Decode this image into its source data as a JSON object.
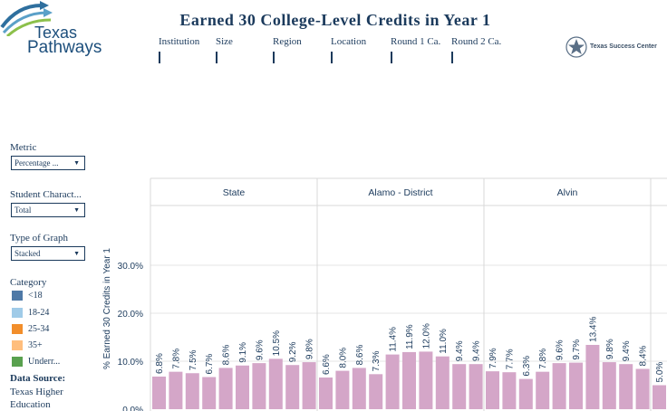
{
  "header": {
    "title": "Earned 30 College-Level Credits in Year 1",
    "logo_line1": "Texas",
    "logo_line2": "Pathways",
    "partner": "Texas Success Center"
  },
  "filters": [
    {
      "label": "Institution"
    },
    {
      "label": "Size"
    },
    {
      "label": "Region"
    },
    {
      "label": "Location"
    },
    {
      "label": "Round 1 Ca."
    },
    {
      "label": "Round 2 Ca."
    }
  ],
  "sidebar": {
    "metric_label": "Metric",
    "metric_value": "Percentage ...",
    "student_label": "Student Charact...",
    "student_value": "Total",
    "graph_label": "Type of Graph",
    "graph_value": "Stacked",
    "category_label": "Category",
    "categories": [
      {
        "label": "<18",
        "color": "#4e79a7"
      },
      {
        "label": "18-24",
        "color": "#a0cbe8"
      },
      {
        "label": "25-34",
        "color": "#f28e2b"
      },
      {
        "label": "35+",
        "color": "#ffbe7d"
      },
      {
        "label": "Underr...",
        "color": "#59a14f"
      }
    ],
    "data_source_title": "Data Source:",
    "data_source_lines": [
      "Texas Higher",
      "Education"
    ]
  },
  "colors": {
    "bar": "#d4a6c8",
    "text": "#1b3a5c",
    "grid": "#e6e6e6"
  },
  "chart_data": {
    "type": "bar",
    "ylabel": "% Earned 30 Credits in Year 1",
    "ylim": [
      0,
      40
    ],
    "yticks": [
      "0.0%",
      "10.0%",
      "20.0%",
      "30.0%"
    ],
    "panels": [
      {
        "name": "State",
        "values": [
          6.8,
          7.8,
          7.5,
          6.7,
          8.6,
          9.1,
          9.6,
          10.5,
          9.2,
          9.8
        ]
      },
      {
        "name": "Alamo - District",
        "values": [
          6.6,
          8.0,
          8.6,
          7.3,
          11.4,
          11.9,
          12.0,
          11.0,
          9.4,
          9.4
        ]
      },
      {
        "name": "Alvin",
        "values": [
          7.9,
          7.7,
          6.3,
          7.8,
          9.6,
          9.7,
          13.4,
          9.8,
          9.4,
          8.4,
          5.0
        ]
      }
    ]
  }
}
